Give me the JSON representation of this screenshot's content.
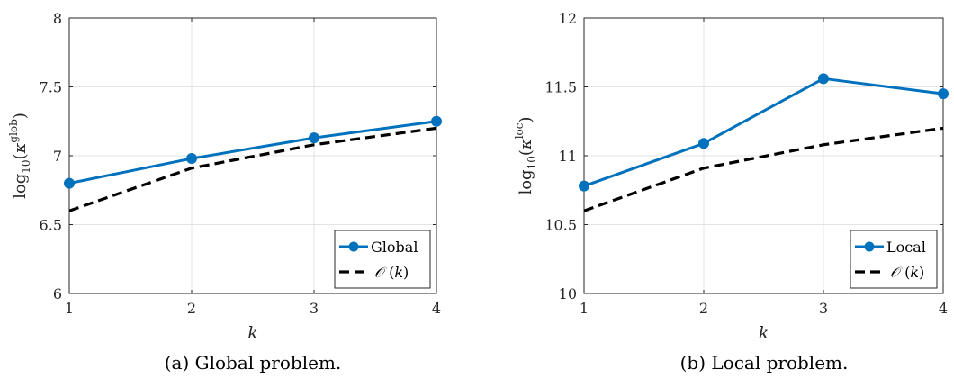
{
  "chart_data": [
    {
      "type": "line",
      "x": [
        1,
        2,
        3,
        4
      ],
      "xlabel": "k",
      "ylabel_base": "log",
      "ylabel_sub": "10",
      "ylabel_open": "(",
      "ylabel_symbol": "κ",
      "ylabel_sup": "glob",
      "ylabel_close": ")",
      "xlim": [
        1,
        4
      ],
      "ylim": [
        6,
        8
      ],
      "xticks": [
        "1",
        "2",
        "3",
        "4"
      ],
      "yticks": [
        "6",
        "6.5",
        "7",
        "7.5",
        "8"
      ],
      "grid": true,
      "legend_position": "bottom-right",
      "series": [
        {
          "name": "Global",
          "values": [
            6.8,
            6.98,
            7.13,
            7.25
          ],
          "color": "#0072BD",
          "style": "solid",
          "marker": "circle"
        },
        {
          "name_script": "𝒪",
          "name_open": "(",
          "name_var": "k",
          "name_close": ")",
          "values": [
            6.6,
            6.91,
            7.08,
            7.2
          ],
          "color": "#000000",
          "style": "dashed",
          "marker": "none"
        }
      ],
      "caption": "(a) Global problem."
    },
    {
      "type": "line",
      "x": [
        1,
        2,
        3,
        4
      ],
      "xlabel": "k",
      "ylabel_base": "log",
      "ylabel_sub": "10",
      "ylabel_open": "(",
      "ylabel_symbol": "κ",
      "ylabel_sup": "loc",
      "ylabel_close": ")",
      "xlim": [
        1,
        4
      ],
      "ylim": [
        10,
        12
      ],
      "xticks": [
        "1",
        "2",
        "3",
        "4"
      ],
      "yticks": [
        "10",
        "10.5",
        "11",
        "11.5",
        "12"
      ],
      "grid": true,
      "legend_position": "bottom-right",
      "series": [
        {
          "name": "Local",
          "values": [
            10.78,
            11.09,
            11.56,
            11.45
          ],
          "color": "#0072BD",
          "style": "solid",
          "marker": "circle"
        },
        {
          "name_script": "𝒪",
          "name_open": "(",
          "name_var": "k",
          "name_close": ")",
          "values": [
            10.6,
            10.91,
            11.08,
            11.2
          ],
          "color": "#000000",
          "style": "dashed",
          "marker": "none"
        }
      ],
      "caption": "(b) Local problem."
    }
  ]
}
